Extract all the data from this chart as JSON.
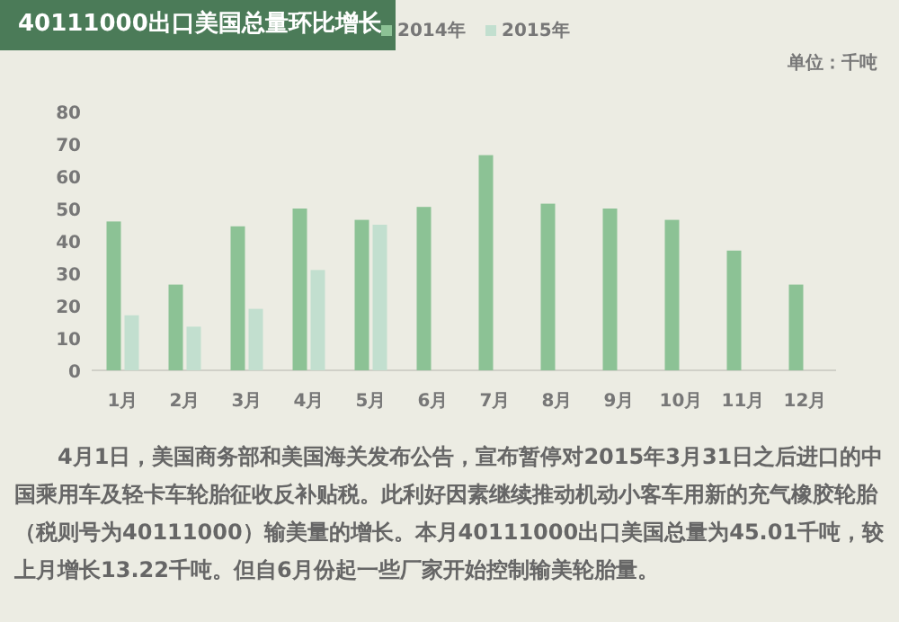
{
  "chart_data": {
    "type": "bar",
    "title": "40111000出口美国总量环比增长",
    "categories": [
      "1月",
      "2月",
      "3月",
      "4月",
      "5月",
      "6月",
      "7月",
      "8月",
      "9月",
      "10月",
      "11月",
      "12月"
    ],
    "series": [
      {
        "name": "2014年",
        "color": "#8cc295",
        "values": [
          46,
          26.5,
          44.5,
          50,
          46.5,
          50.5,
          66.5,
          51.5,
          50,
          46.5,
          37,
          26.5
        ]
      },
      {
        "name": "2015年",
        "color": "#c2dfcf",
        "values": [
          17,
          13.5,
          19,
          31,
          45,
          null,
          null,
          null,
          null,
          null,
          null,
          null
        ]
      }
    ],
    "ylim": [
      0,
      80
    ],
    "yticks": [
      0,
      10,
      20,
      30,
      40,
      50,
      60,
      70,
      80
    ],
    "grid": false,
    "legend": "top",
    "annotations": [
      "单位：千吨",
      "4月1日，美国商务部和美国海关发布公告，宣布暂停对2015年3月31日之后进口的中国乘用车及轻卡车轮胎征收反补贴税。此利好因素继续推动机动小客车用新的充气橡胶轮胎（税则号为40111000）输美量的增长。本月40111000出口美国总量为45.01千吨，较上月增长13.22千吨。但自6月份起一些厂家开始控制输美轮胎量。"
    ]
  }
}
